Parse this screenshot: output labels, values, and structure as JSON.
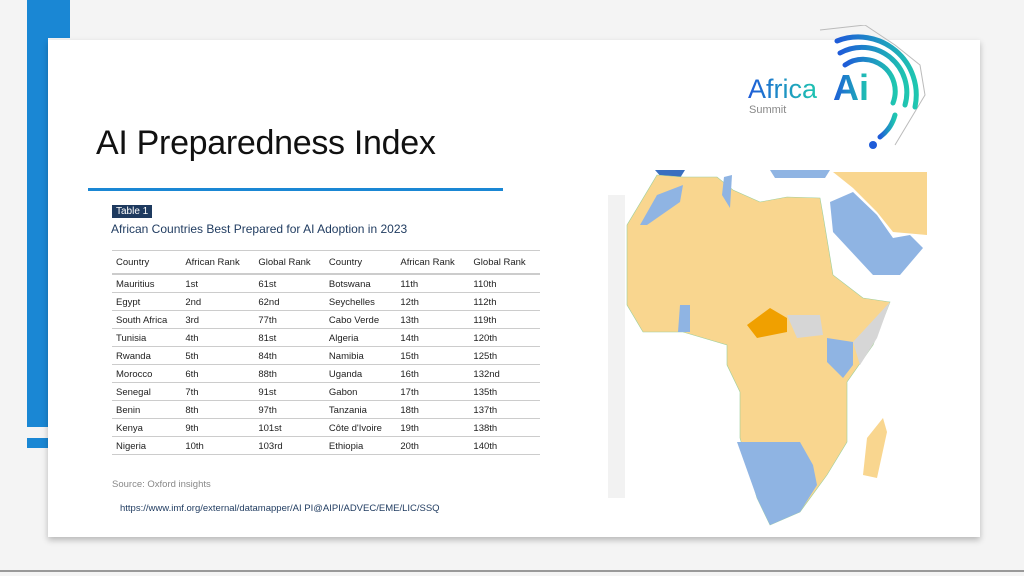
{
  "slide": {
    "title": "AI Preparedness Index",
    "table_tag": "Table 1",
    "table_title": "African Countries Best Prepared for AI Adoption in 2023",
    "headers": [
      "Country",
      "African Rank",
      "Global Rank",
      "Country",
      "African Rank",
      "Global Rank"
    ],
    "rows": [
      [
        "Mauritius",
        "1st",
        "61st",
        "Botswana",
        "11th",
        "110th"
      ],
      [
        "Egypt",
        "2nd",
        "62nd",
        "Seychelles",
        "12th",
        "112th"
      ],
      [
        "South Africa",
        "3rd",
        "77th",
        "Cabo Verde",
        "13th",
        "119th"
      ],
      [
        "Tunisia",
        "4th",
        "81st",
        "Algeria",
        "14th",
        "120th"
      ],
      [
        "Rwanda",
        "5th",
        "84th",
        "Namibia",
        "15th",
        "125th"
      ],
      [
        "Morocco",
        "6th",
        "88th",
        "Uganda",
        "16th",
        "132nd"
      ],
      [
        "Senegal",
        "7th",
        "91st",
        "Gabon",
        "17th",
        "135th"
      ],
      [
        "Benin",
        "8th",
        "97th",
        "Tanzania",
        "18th",
        "137th"
      ],
      [
        "Kenya",
        "9th",
        "101st",
        "Côte d'Ivoire",
        "19th",
        "138th"
      ],
      [
        "Nigeria",
        "10th",
        "103rd",
        "Ethiopia",
        "20th",
        "140th"
      ]
    ],
    "source": "Source: Oxford insights",
    "url": "https://www.imf.org/external/datamapper/AI  PI@AIPI/ADVEC/EME/LIC/SSQ"
  },
  "logo": {
    "text1": "Africa",
    "text2": "Ai",
    "text3": "Summit"
  },
  "colors": {
    "accent": "#1a87d4",
    "map_yellow": "#f9d68f",
    "map_blue": "#8fb4e3",
    "map_orange": "#f0a000",
    "map_gray": "#d6d6d6"
  }
}
